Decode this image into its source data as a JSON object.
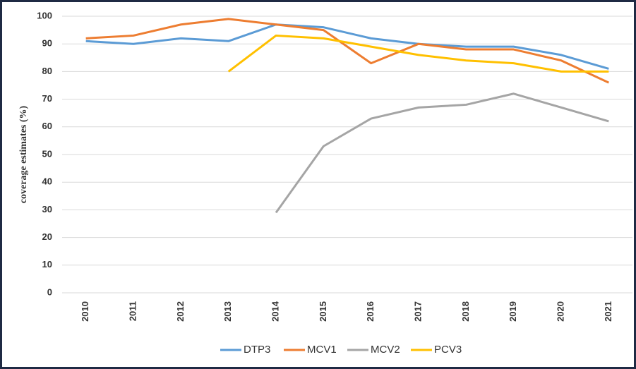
{
  "chart_data": {
    "type": "line",
    "y_label": "coverage estimates (%)",
    "categories": [
      "2010",
      "2011",
      "2012",
      "2013",
      "2014",
      "2015",
      "2016",
      "2017",
      "2018",
      "2019",
      "2020",
      "2021"
    ],
    "series": [
      {
        "name": "DTP3",
        "color": "#5b9bd5",
        "values": [
          91,
          90,
          92,
          91,
          97,
          96,
          92,
          90,
          89,
          89,
          86,
          81
        ]
      },
      {
        "name": "MCV1",
        "color": "#ed7d31",
        "values": [
          92,
          93,
          97,
          99,
          97,
          95,
          83,
          90,
          88,
          88,
          84,
          76
        ]
      },
      {
        "name": "MCV2",
        "color": "#a5a5a5",
        "values": [
          null,
          null,
          null,
          null,
          29,
          53,
          63,
          67,
          68,
          72,
          67,
          62
        ]
      },
      {
        "name": "PCV3",
        "color": "#ffc000",
        "values": [
          null,
          null,
          null,
          80,
          93,
          92,
          89,
          86,
          84,
          83,
          80,
          80
        ]
      }
    ],
    "ylim": [
      0,
      100
    ],
    "yticks": [
      0,
      10,
      20,
      30,
      40,
      50,
      60,
      70,
      80,
      90,
      100
    ],
    "grid": true,
    "legend": "bottom"
  }
}
